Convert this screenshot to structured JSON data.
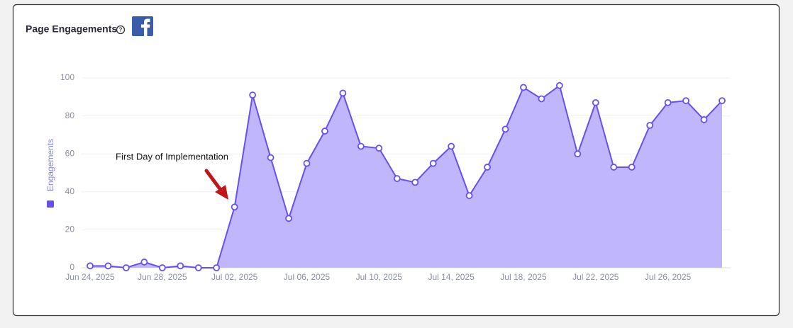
{
  "chart_data": {
    "type": "area",
    "title": "Page Engagements",
    "x": [
      "2025-06-24",
      "2025-06-25",
      "2025-06-26",
      "2025-06-27",
      "2025-06-28",
      "2025-06-29",
      "2025-06-30",
      "2025-07-01",
      "2025-07-02",
      "2025-07-03",
      "2025-07-04",
      "2025-07-05",
      "2025-07-06",
      "2025-07-07",
      "2025-07-08",
      "2025-07-09",
      "2025-07-10",
      "2025-07-11",
      "2025-07-12",
      "2025-07-13",
      "2025-07-14",
      "2025-07-15",
      "2025-07-16",
      "2025-07-17",
      "2025-07-18",
      "2025-07-19",
      "2025-07-20",
      "2025-07-21",
      "2025-07-22",
      "2025-07-23",
      "2025-07-24",
      "2025-07-25",
      "2025-07-26",
      "2025-07-27",
      "2025-07-28",
      "2025-07-29"
    ],
    "series": [
      {
        "name": "Engagements",
        "color": "#6a4ff0",
        "fill": "#c0b6fd",
        "values": [
          1,
          1,
          0,
          3,
          0,
          1,
          0,
          0,
          32,
          91,
          58,
          26,
          55,
          72,
          92,
          64,
          63,
          47,
          45,
          55,
          64,
          38,
          53,
          73,
          95,
          89,
          96,
          60,
          87,
          53,
          53,
          75,
          87,
          88,
          78,
          88
        ]
      }
    ],
    "xlim": [
      "2025-06-24",
      "2025-07-29"
    ],
    "xticks": [
      {
        "value": "2025-06-24",
        "label": "Jun 24, 2025"
      },
      {
        "value": "2025-06-28",
        "label": "Jun 28, 2025"
      },
      {
        "value": "2025-07-02",
        "label": "Jul 02, 2025"
      },
      {
        "value": "2025-07-06",
        "label": "Jul 06, 2025"
      },
      {
        "value": "2025-07-10",
        "label": "Jul 10, 2025"
      },
      {
        "value": "2025-07-14",
        "label": "Jul 14, 2025"
      },
      {
        "value": "2025-07-18",
        "label": "Jul 18, 2025"
      },
      {
        "value": "2025-07-22",
        "label": "Jul 22, 2025"
      },
      {
        "value": "2025-07-26",
        "label": "Jul 26, 2025"
      }
    ],
    "ylim": [
      0,
      100
    ],
    "yticks": [
      0,
      20,
      40,
      60,
      80,
      100
    ],
    "grid": true,
    "annotations": [
      {
        "text": "First Day of Implementation"
      }
    ]
  }
}
